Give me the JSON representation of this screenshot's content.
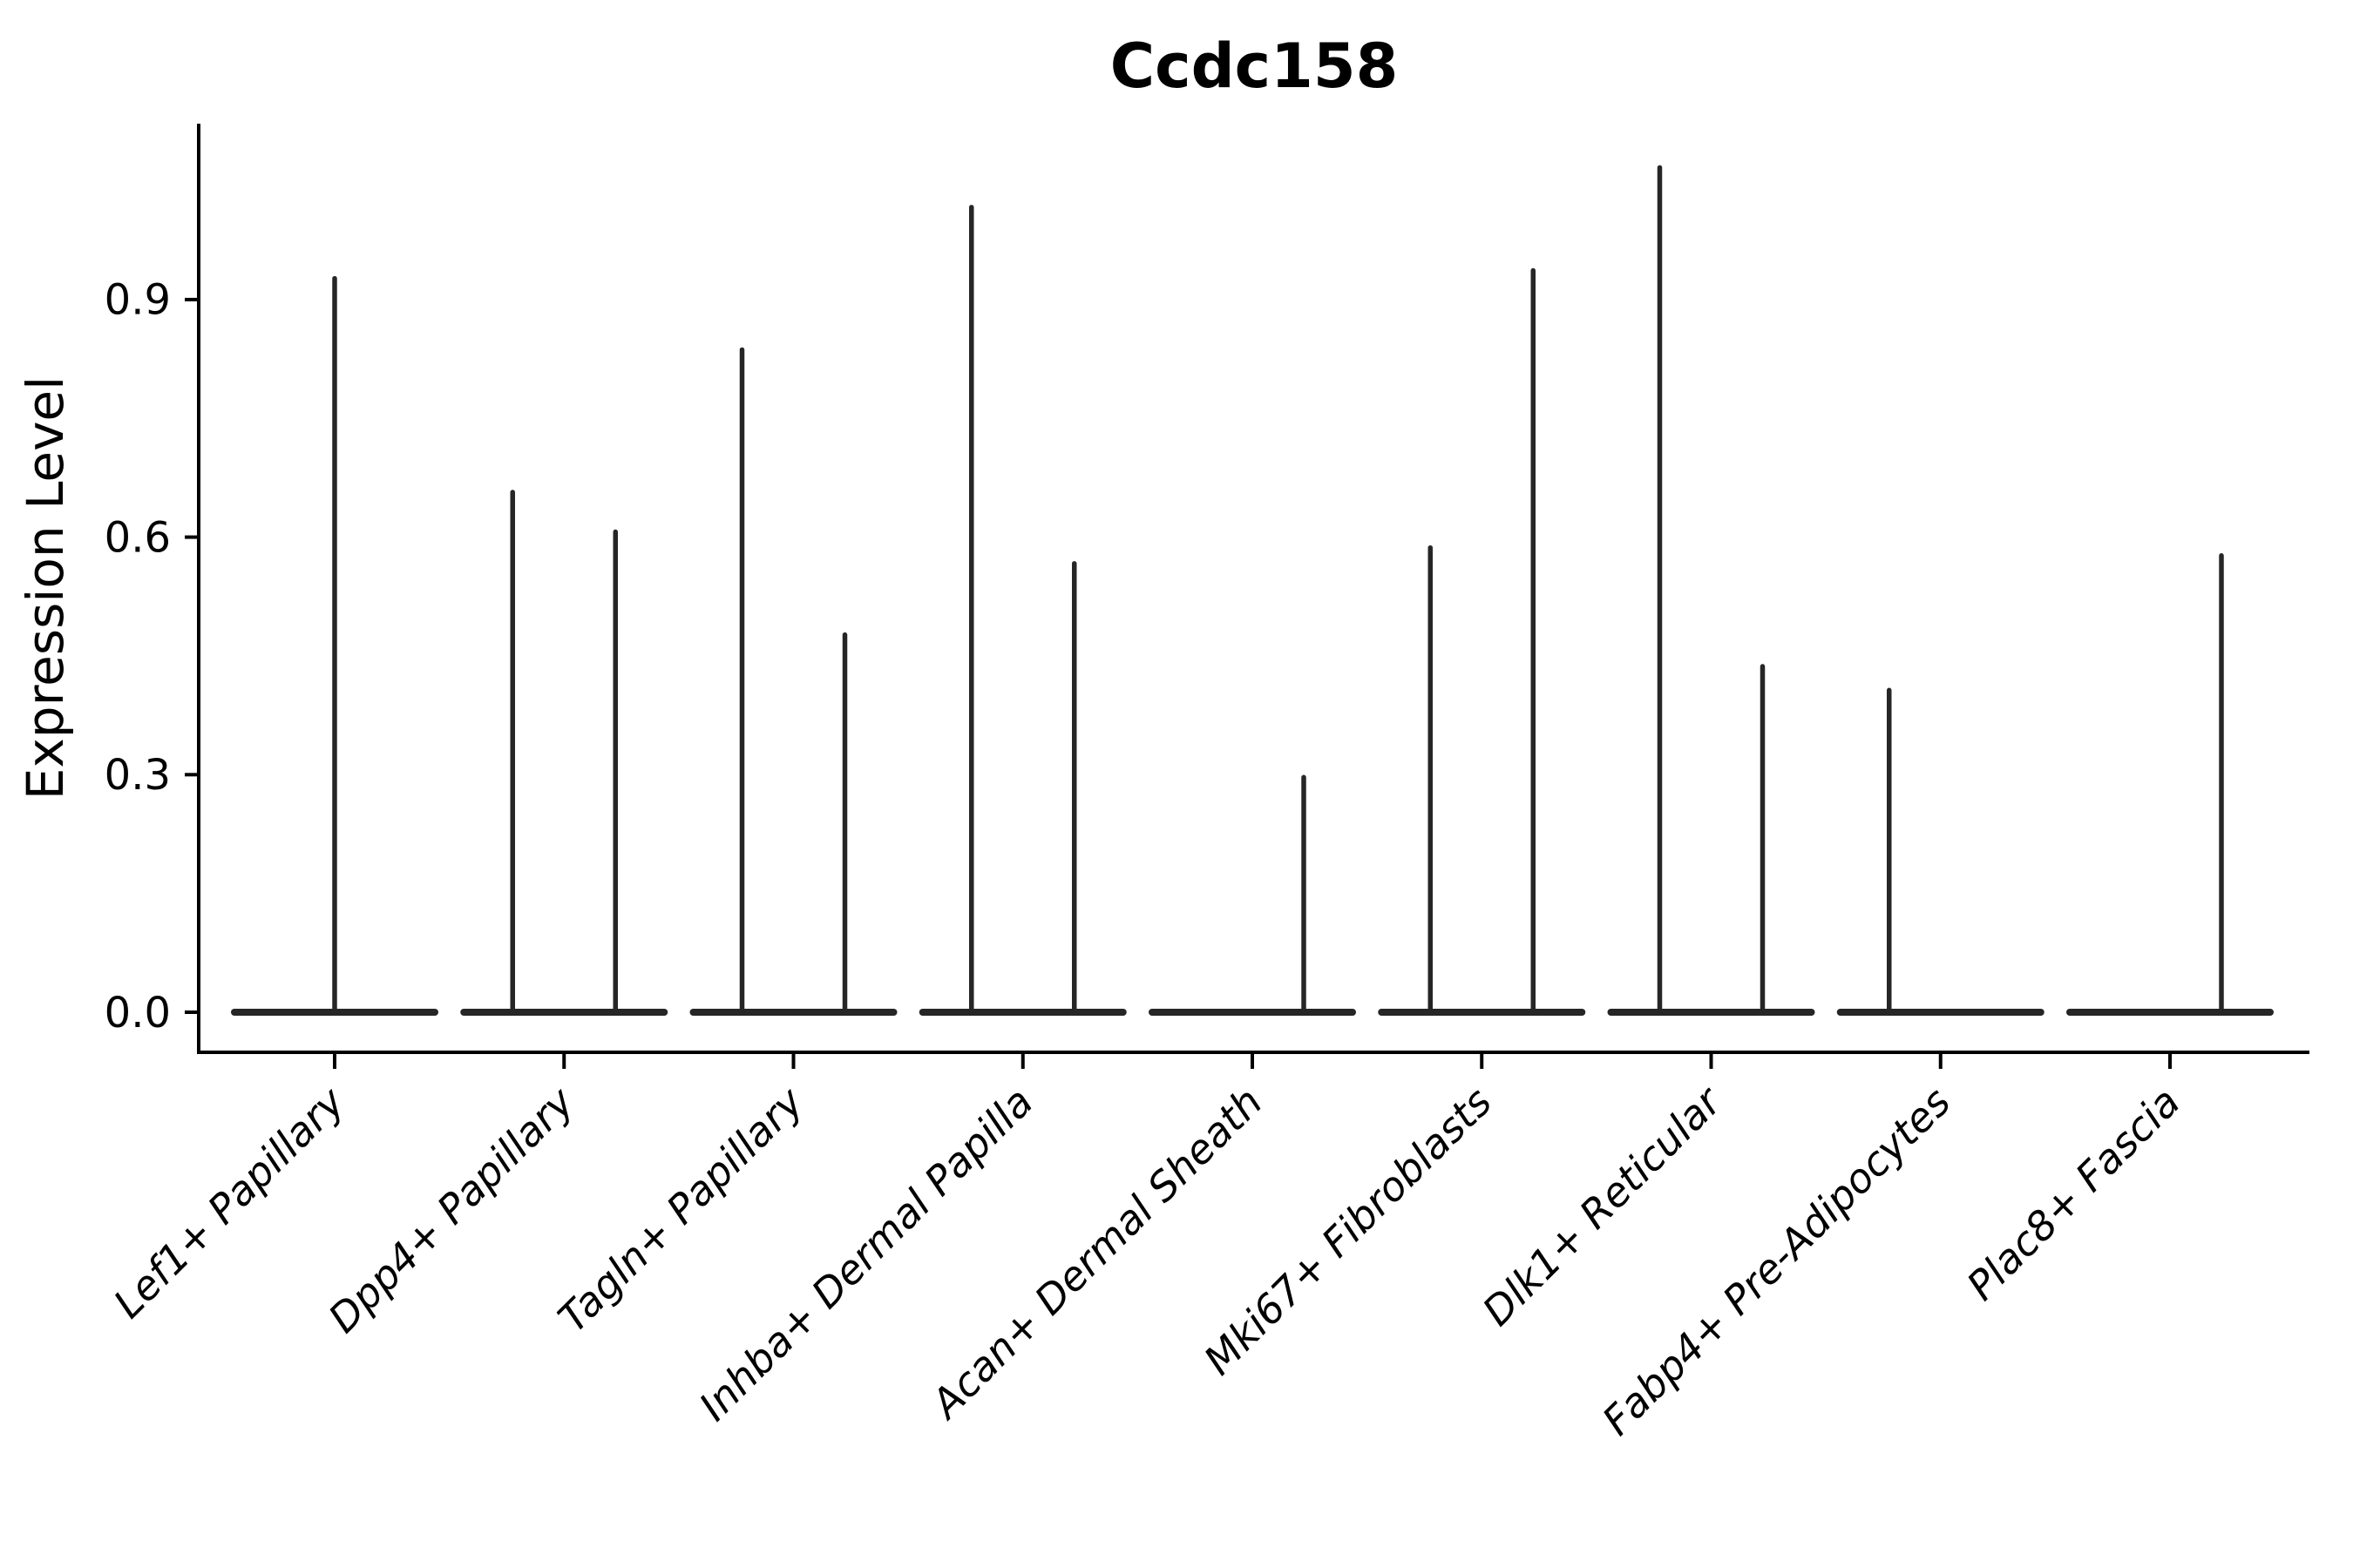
{
  "title": "Ccdc158",
  "colors": {
    "background": "#ffffff",
    "axis": "#000000",
    "text": "#000000",
    "violin": "#262626"
  },
  "chart_data": {
    "type": "violin",
    "title": "Ccdc158",
    "xlabel": "",
    "ylabel": "Expression Level",
    "ylim": [
      -0.05,
      1.12
    ],
    "yticks": [
      0.0,
      0.3,
      0.6,
      0.9
    ],
    "ytick_labels": [
      "0.0",
      "0.3",
      "0.6",
      "0.9"
    ],
    "grid": false,
    "legend": "none",
    "x_label_rotation_deg": 45,
    "categories": [
      "Lef1+ Papillary",
      "Dpp4+ Papillary",
      "Tagln+ Papillary",
      "Inhba+ Dermal Papilla",
      "Acan+ Dermal Sheath",
      "Mki67+ Fibroblasts",
      "Dlk1+ Reticular",
      "Fabp4+ Pre-Adipocytes",
      "Plac8+ Fascia"
    ],
    "note": "Sparse expression violins: each category is a flat density pancake at 0 with thin spikes reaching the max expression of each dodged sub-violin.",
    "violins": [
      {
        "category": "Lef1+ Papillary",
        "baseline_value": 0,
        "spikes": [
          {
            "pos": "center",
            "max": 0.93
          }
        ]
      },
      {
        "category": "Dpp4+ Papillary",
        "baseline_value": 0,
        "spikes": [
          {
            "pos": "left",
            "max": 0.66
          },
          {
            "pos": "right",
            "max": 0.61
          }
        ]
      },
      {
        "category": "Tagln+ Papillary",
        "baseline_value": 0,
        "spikes": [
          {
            "pos": "left",
            "max": 0.84
          },
          {
            "pos": "right",
            "max": 0.48
          }
        ]
      },
      {
        "category": "Inhba+ Dermal Papilla",
        "baseline_value": 0,
        "spikes": [
          {
            "pos": "left",
            "max": 1.02
          },
          {
            "pos": "right",
            "max": 0.57
          }
        ]
      },
      {
        "category": "Acan+ Dermal Sheath",
        "baseline_value": 0,
        "spikes": [
          {
            "pos": "right",
            "max": 0.3
          }
        ]
      },
      {
        "category": "Mki67+ Fibroblasts",
        "baseline_value": 0,
        "spikes": [
          {
            "pos": "left",
            "max": 0.59
          },
          {
            "pos": "right",
            "max": 0.94
          }
        ]
      },
      {
        "category": "Dlk1+ Reticular",
        "baseline_value": 0,
        "spikes": [
          {
            "pos": "left",
            "max": 1.07
          },
          {
            "pos": "right",
            "max": 0.44
          }
        ]
      },
      {
        "category": "Fabp4+ Pre-Adipocytes",
        "baseline_value": 0,
        "spikes": [
          {
            "pos": "left",
            "max": 0.41
          }
        ]
      },
      {
        "category": "Plac8+ Fascia",
        "baseline_value": 0,
        "spikes": [
          {
            "pos": "right",
            "max": 0.58
          }
        ]
      }
    ]
  }
}
